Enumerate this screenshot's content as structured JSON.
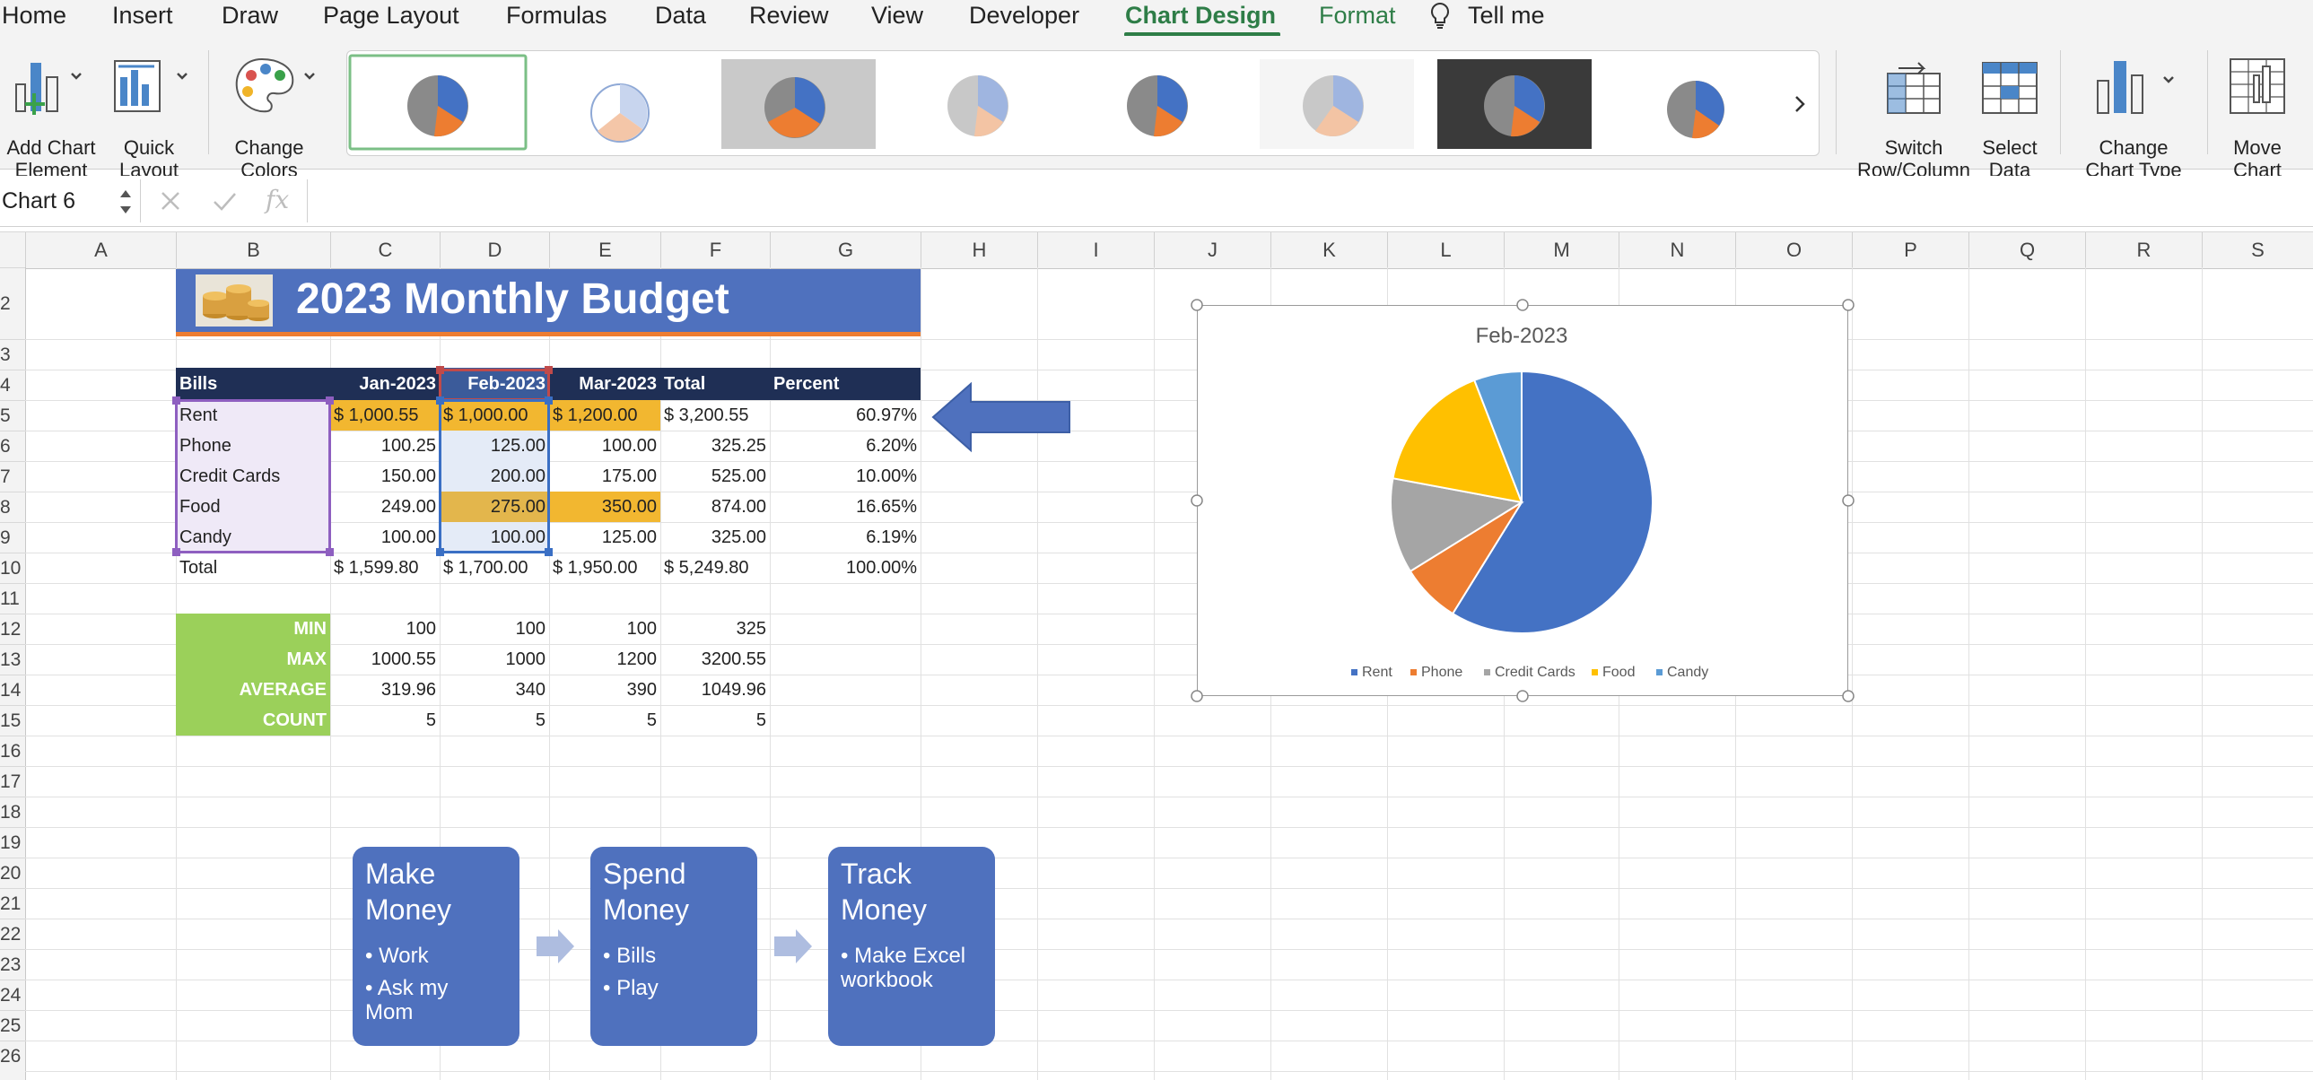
{
  "menu": {
    "tabs": [
      "Home",
      "Insert",
      "Draw",
      "Page Layout",
      "Formulas",
      "Data",
      "Review",
      "View",
      "Developer",
      "Chart Design",
      "Format"
    ],
    "tell_me": "Tell me"
  },
  "ribbon": {
    "add_chart_element": "Add Chart\nElement",
    "quick_layout": "Quick\nLayout",
    "change_colors": "Change\nColors",
    "switch_row_column": "Switch\nRow/Column",
    "select_data": "Select\nData",
    "change_chart_type": "Change\nChart Type",
    "move_chart": "Move\nChart"
  },
  "formula_bar": {
    "name_box": "Chart 6",
    "fx": "fx",
    "value": ""
  },
  "columns": [
    "A",
    "B",
    "C",
    "D",
    "E",
    "F",
    "G",
    "H",
    "I",
    "J",
    "K",
    "L",
    "M",
    "N",
    "O",
    "P",
    "Q",
    "R",
    "S"
  ],
  "rows": [
    "2",
    "3",
    "4",
    "5",
    "6",
    "7",
    "8",
    "9",
    "10",
    "11",
    "12",
    "13",
    "14",
    "15",
    "16",
    "17",
    "18",
    "19",
    "20",
    "21",
    "22",
    "23",
    "24",
    "25",
    "26"
  ],
  "sheet": {
    "title": "2023 Monthly Budget",
    "headers": [
      "Bills",
      "Jan-2023",
      "Feb-2023",
      "Mar-2023",
      "Total",
      "Percent"
    ],
    "data": [
      [
        "Rent",
        "$ 1,000.55",
        "$ 1,000.00",
        "$ 1,200.00",
        "$ 3,200.55",
        "60.97%"
      ],
      [
        "Phone",
        "100.25",
        "125.00",
        "100.00",
        "325.25",
        "6.20%"
      ],
      [
        "Credit Cards",
        "150.00",
        "200.00",
        "175.00",
        "525.00",
        "10.00%"
      ],
      [
        "Food",
        "249.00",
        "275.00",
        "350.00",
        "874.00",
        "16.65%"
      ],
      [
        "Candy",
        "100.00",
        "100.00",
        "125.00",
        "325.00",
        "6.19%"
      ],
      [
        "Total",
        "$ 1,599.80",
        "$ 1,700.00",
        "$ 1,950.00",
        "$ 5,249.80",
        "100.00%"
      ]
    ],
    "stats": [
      [
        "MIN",
        "100",
        "100",
        "100",
        "325"
      ],
      [
        "MAX",
        "1000.55",
        "1000",
        "1200",
        "3200.55"
      ],
      [
        "AVERAGE",
        "319.96",
        "340",
        "390",
        "1049.96"
      ],
      [
        "COUNT",
        "5",
        "5",
        "5",
        "5"
      ]
    ]
  },
  "smartart": [
    {
      "title": "Make\nMoney",
      "bullets": [
        "Work",
        "Ask my\nMom"
      ]
    },
    {
      "title": "Spend\nMoney",
      "bullets": [
        "Bills",
        "Play"
      ]
    },
    {
      "title": "Track\nMoney",
      "bullets": [
        "Make Excel\nworkbook"
      ]
    }
  ],
  "colors": {
    "rent": "#4472c4",
    "phone": "#ed7d31",
    "credit_cards": "#a5a5a5",
    "food": "#ffc000",
    "candy": "#5b9bd5",
    "title_bar": "#4f71be",
    "header_row": "#1f2f55",
    "stats_bg": "#9bd05a",
    "highlight": "#f2b730"
  },
  "chart_data": {
    "type": "pie",
    "title": "Feb-2023",
    "categories": [
      "Rent",
      "Phone",
      "Credit Cards",
      "Food",
      "Candy"
    ],
    "values": [
      1000,
      125,
      200,
      275,
      100
    ],
    "legend": "bottom"
  }
}
